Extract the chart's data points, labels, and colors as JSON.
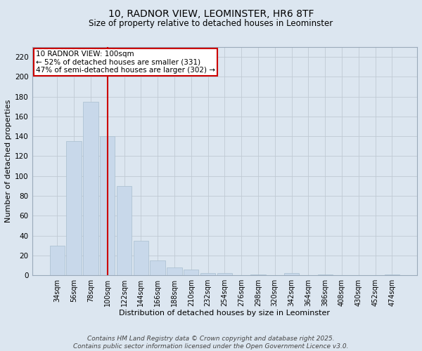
{
  "title_line1": "10, RADNOR VIEW, LEOMINSTER, HR6 8TF",
  "title_line2": "Size of property relative to detached houses in Leominster",
  "xlabel": "Distribution of detached houses by size in Leominster",
  "ylabel": "Number of detached properties",
  "categories": [
    "34sqm",
    "56sqm",
    "78sqm",
    "100sqm",
    "122sqm",
    "144sqm",
    "166sqm",
    "188sqm",
    "210sqm",
    "232sqm",
    "254sqm",
    "276sqm",
    "298sqm",
    "320sqm",
    "342sqm",
    "364sqm",
    "386sqm",
    "408sqm",
    "430sqm",
    "452sqm",
    "474sqm"
  ],
  "values": [
    30,
    135,
    175,
    140,
    90,
    35,
    15,
    8,
    6,
    2,
    2,
    0,
    1,
    0,
    2,
    0,
    1,
    0,
    0,
    0,
    1
  ],
  "bar_color": "#c8d8ea",
  "bar_edgecolor": "#a8bece",
  "vline_x_index": 3,
  "vline_color": "#cc0000",
  "annotation_text": "10 RADNOR VIEW: 100sqm\n← 52% of detached houses are smaller (331)\n47% of semi-detached houses are larger (302) →",
  "annotation_box_facecolor": "#ffffff",
  "annotation_box_edgecolor": "#cc0000",
  "annotation_fontsize": 7.5,
  "ylim": [
    0,
    230
  ],
  "yticks": [
    0,
    20,
    40,
    60,
    80,
    100,
    120,
    140,
    160,
    180,
    200,
    220
  ],
  "grid_color": "#c0cad4",
  "bg_color": "#dce6f0",
  "footer_line1": "Contains HM Land Registry data © Crown copyright and database right 2025.",
  "footer_line2": "Contains public sector information licensed under the Open Government Licence v3.0.",
  "footer_fontsize": 6.5,
  "title1_fontsize": 10,
  "title2_fontsize": 8.5,
  "xlabel_fontsize": 8,
  "ylabel_fontsize": 8,
  "tick_fontsize": 7,
  "ytick_fontsize": 7.5
}
